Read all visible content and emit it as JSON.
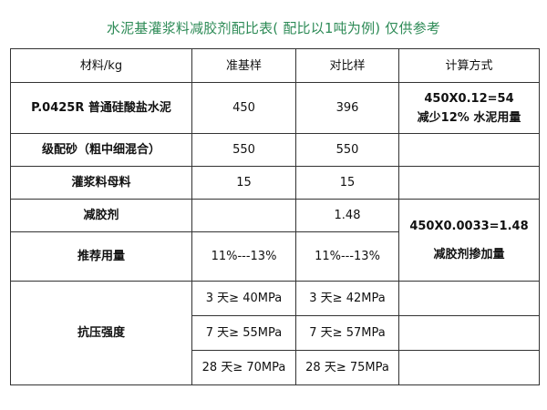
{
  "title": "水泥基灌浆料减胶剂配比表( 配比以1吨为例) 仅供参考",
  "header": {
    "material": "材料/kg",
    "base": "准基样",
    "compare": "对比样",
    "calc": "计算方式"
  },
  "rows": {
    "cement": {
      "name": "P.0425R 普通硅酸盐水泥",
      "base": "450",
      "compare": "396",
      "calc1": "450X0.12=54",
      "calc2": "减少12% 水泥用量"
    },
    "sand": {
      "name": "级配砂（粗中细混合）",
      "base": "550",
      "compare": "550"
    },
    "grout": {
      "name": "灌浆料母料",
      "base": "15",
      "compare": "15"
    },
    "reducer": {
      "name": "减胶剂",
      "base": "",
      "compare": "1.48",
      "calc1": "450X0.0033=1.48",
      "calc2": "减胶剂掺加量"
    },
    "dosage": {
      "name": "推荐用量",
      "base": "11%---13%",
      "compare": "11%---13%"
    },
    "strength": {
      "name": "抗压强度",
      "d3_base": "3 天≥ 40MPa",
      "d3_compare": "3 天≥ 42MPa",
      "d7_base": "7 天≥ 55MPa",
      "d7_compare": "7 天≥ 57MPa",
      "d28_base": "28 天≥ 70MPa",
      "d28_compare": "28 天≥ 75MPa"
    }
  }
}
